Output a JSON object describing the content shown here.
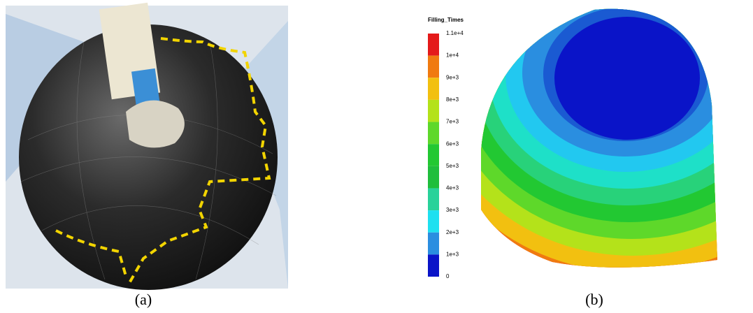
{
  "panels": [
    {
      "caption": "(a)"
    },
    {
      "caption": "(b)",
      "legend": {
        "title": "Filling_Times",
        "labels": [
          "1.1e+4",
          "1e+4",
          "9e+3",
          "8e+3",
          "7e+3",
          "6e+3",
          "5e+3",
          "4e+3",
          "3e+3",
          "2e+3",
          "1e+3",
          "0"
        ]
      }
    }
  ]
}
